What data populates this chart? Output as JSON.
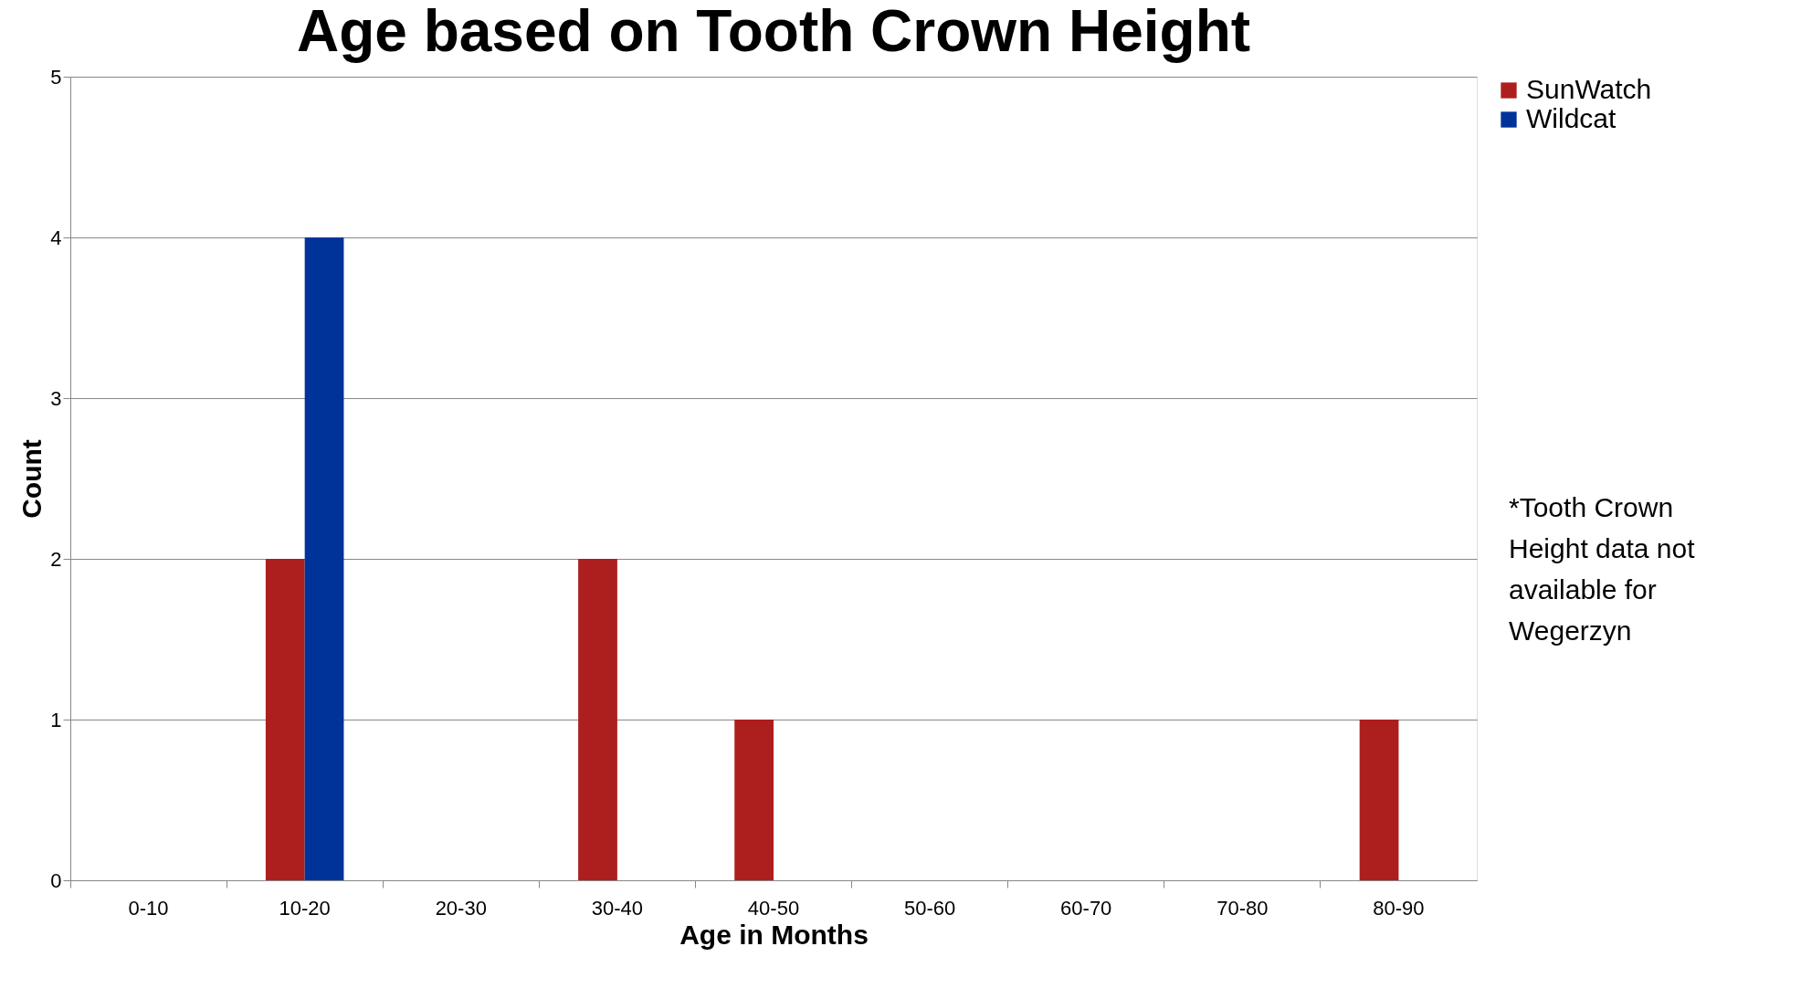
{
  "chart_data": {
    "type": "bar",
    "title": "Age based on Tooth Crown Height",
    "xlabel": "Age in Months",
    "ylabel": "Count",
    "categories": [
      "0-10",
      "10-20",
      "20-30",
      "30-40",
      "40-50",
      "50-60",
      "60-70",
      "70-80",
      "80-90"
    ],
    "series": [
      {
        "name": "SunWatch",
        "color": "#ad1f1f",
        "values": [
          0,
          2,
          0,
          2,
          1,
          0,
          0,
          0,
          1
        ]
      },
      {
        "name": "Wildcat",
        "color": "#00339a",
        "values": [
          0,
          4,
          0,
          0,
          0,
          0,
          0,
          0,
          0
        ]
      }
    ],
    "ylim": [
      0,
      5
    ],
    "yticks": [
      0,
      1,
      2,
      3,
      4,
      5
    ],
    "grid": "y",
    "legend": "top right",
    "annotations": [
      "*Tooth Crown Height data not available for Wegerzyn"
    ]
  }
}
